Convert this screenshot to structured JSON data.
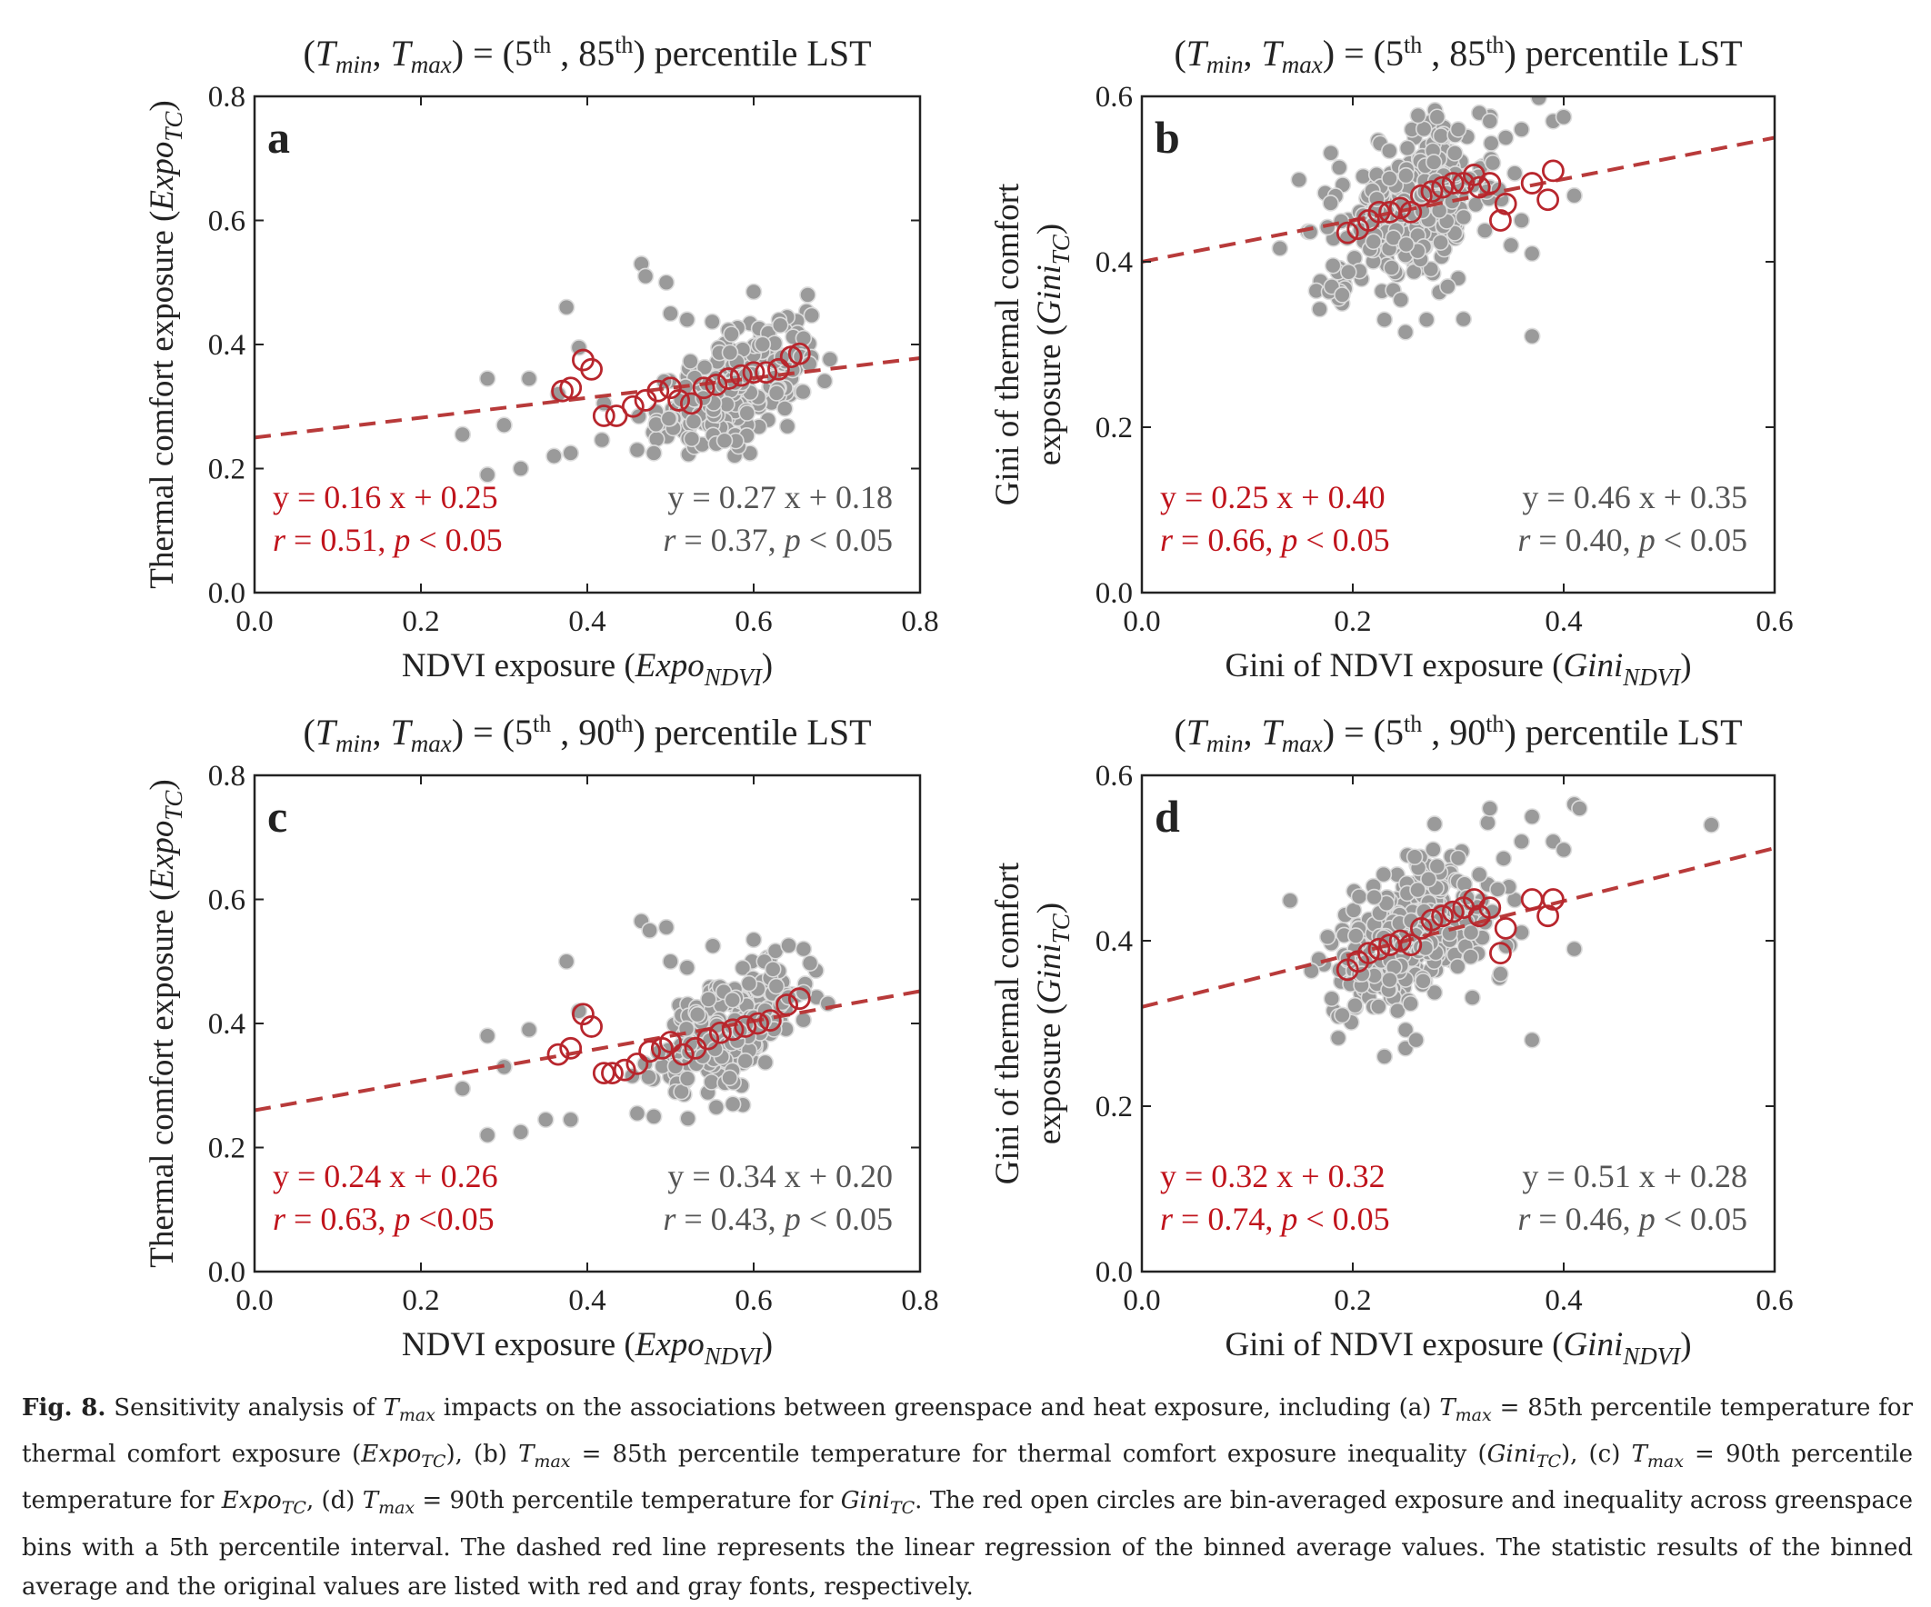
{
  "colors": {
    "axis": "#222222",
    "scatter_fill": "#9a9a9a",
    "scatter_edge": "#dcdcdc",
    "binned": "#b8262d",
    "fit_line": "#b83a3a",
    "binned_text": "#c0141c",
    "original_text": "#555555",
    "caption_text": "#222222"
  },
  "chart_data": [
    {
      "panel_label": "a",
      "type": "scatter",
      "title_parts": {
        "open": "(",
        "v1": "T",
        "s1": "min",
        "comma": ", ",
        "v2": "T",
        "s2": "max",
        "mid": ") = (5",
        "p1": "th",
        "sep": " , 85",
        "p2": "th",
        "tail": ") percentile LST"
      },
      "xlabel": {
        "main": "NDVI exposure (",
        "italic": "Expo",
        "sub": "NDVI",
        "close": ")"
      },
      "ylabel": {
        "main": "Thermal comfort exposure (",
        "italic": "Expo",
        "sub": "TC",
        "close": ")"
      },
      "xlim": [
        0,
        0.8
      ],
      "ylim": [
        0,
        0.8
      ],
      "xticks": [
        "0.0",
        "0.2",
        "0.4",
        "0.6",
        "0.8"
      ],
      "yticks": [
        "0.0",
        "0.2",
        "0.4",
        "0.6",
        "0.8"
      ],
      "fit_binned": {
        "slope": 0.16,
        "intercept": 0.25
      },
      "stats_binned": {
        "eq": "y = 0.16 x + 0.25",
        "r_label": "r",
        "r_val": " = 0.51, ",
        "p_label": "p",
        "p_val": " < 0.05"
      },
      "stats_original": {
        "eq": "y = 0.27 x + 0.18",
        "r_label": "r",
        "r_val": " = 0.37, ",
        "p_label": "p",
        "p_val": " < 0.05"
      },
      "binned_points": [
        [
          0.37,
          0.325
        ],
        [
          0.38,
          0.33
        ],
        [
          0.395,
          0.375
        ],
        [
          0.405,
          0.36
        ],
        [
          0.42,
          0.285
        ],
        [
          0.435,
          0.285
        ],
        [
          0.455,
          0.3
        ],
        [
          0.47,
          0.31
        ],
        [
          0.485,
          0.325
        ],
        [
          0.5,
          0.33
        ],
        [
          0.51,
          0.31
        ],
        [
          0.525,
          0.305
        ],
        [
          0.54,
          0.33
        ],
        [
          0.555,
          0.335
        ],
        [
          0.57,
          0.345
        ],
        [
          0.585,
          0.35
        ],
        [
          0.6,
          0.355
        ],
        [
          0.615,
          0.355
        ],
        [
          0.63,
          0.36
        ],
        [
          0.645,
          0.38
        ],
        [
          0.655,
          0.385
        ]
      ],
      "scatter_outliers": [
        [
          0.25,
          0.255
        ],
        [
          0.28,
          0.345
        ],
        [
          0.28,
          0.19
        ],
        [
          0.3,
          0.27
        ],
        [
          0.32,
          0.2
        ],
        [
          0.33,
          0.345
        ],
        [
          0.36,
          0.22
        ],
        [
          0.365,
          0.32
        ],
        [
          0.375,
          0.46
        ],
        [
          0.38,
          0.225
        ],
        [
          0.39,
          0.395
        ],
        [
          0.42,
          0.305
        ],
        [
          0.46,
          0.23
        ],
        [
          0.48,
          0.225
        ],
        [
          0.465,
          0.53
        ],
        [
          0.47,
          0.51
        ],
        [
          0.495,
          0.5
        ],
        [
          0.5,
          0.45
        ],
        [
          0.52,
          0.44
        ],
        [
          0.555,
          0.24
        ],
        [
          0.565,
          0.245
        ],
        [
          0.6,
          0.485
        ],
        [
          0.665,
          0.48
        ],
        [
          0.66,
          0.41
        ]
      ],
      "scatter_cloud": {
        "x_mean": 0.575,
        "x_sd": 0.045,
        "y_base": -0.04,
        "y_slope": 0.65,
        "y_sd": 0.04,
        "count": 250
      }
    },
    {
      "panel_label": "b",
      "type": "scatter",
      "title_parts": {
        "open": "(",
        "v1": "T",
        "s1": "min",
        "comma": ", ",
        "v2": "T",
        "s2": "max",
        "mid": ") = (5",
        "p1": "th",
        "sep": " , 85",
        "p2": "th",
        "tail": ") percentile LST"
      },
      "xlabel": {
        "main": "Gini of NDVI exposure (",
        "italic": "Gini",
        "sub": "NDVI",
        "close": ")"
      },
      "ylabel_line1": "Gini of thermal comfort",
      "ylabel": {
        "main": "exposure (",
        "italic": "Gini",
        "sub": "TC",
        "close": ")"
      },
      "xlim": [
        0,
        0.6
      ],
      "ylim": [
        0,
        0.6
      ],
      "xticks": [
        "0.0",
        "0.2",
        "0.4",
        "0.6"
      ],
      "yticks": [
        "0.0",
        "0.2",
        "0.4",
        "0.6"
      ],
      "fit_binned": {
        "slope": 0.25,
        "intercept": 0.4
      },
      "stats_binned": {
        "eq": "y = 0.25 x + 0.40",
        "r_label": "r",
        "r_val": " = 0.66, ",
        "p_label": "p",
        "p_val": " < 0.05"
      },
      "stats_original": {
        "eq": "y = 0.46 x + 0.35",
        "r_label": "r",
        "r_val": " = 0.40, ",
        "p_label": "p",
        "p_val": " < 0.05"
      },
      "binned_points": [
        [
          0.195,
          0.435
        ],
        [
          0.205,
          0.44
        ],
        [
          0.215,
          0.45
        ],
        [
          0.225,
          0.46
        ],
        [
          0.235,
          0.46
        ],
        [
          0.245,
          0.465
        ],
        [
          0.255,
          0.46
        ],
        [
          0.265,
          0.48
        ],
        [
          0.275,
          0.485
        ],
        [
          0.285,
          0.49
        ],
        [
          0.295,
          0.495
        ],
        [
          0.305,
          0.495
        ],
        [
          0.315,
          0.505
        ],
        [
          0.32,
          0.49
        ],
        [
          0.33,
          0.495
        ],
        [
          0.34,
          0.45
        ],
        [
          0.345,
          0.47
        ],
        [
          0.37,
          0.495
        ],
        [
          0.385,
          0.475
        ],
        [
          0.39,
          0.51
        ]
      ],
      "scatter_outliers": [
        [
          0.18,
          0.37
        ],
        [
          0.19,
          0.36
        ],
        [
          0.23,
          0.33
        ],
        [
          0.25,
          0.315
        ],
        [
          0.27,
          0.33
        ],
        [
          0.28,
          0.575
        ],
        [
          0.3,
          0.56
        ],
        [
          0.32,
          0.58
        ],
        [
          0.33,
          0.57
        ],
        [
          0.345,
          0.55
        ],
        [
          0.36,
          0.56
        ],
        [
          0.37,
          0.31
        ],
        [
          0.37,
          0.41
        ],
        [
          0.39,
          0.57
        ],
        [
          0.4,
          0.575
        ],
        [
          0.41,
          0.48
        ],
        [
          0.36,
          0.45
        ],
        [
          0.35,
          0.42
        ],
        [
          0.3,
          0.38
        ],
        [
          0.29,
          0.37
        ]
      ],
      "scatter_cloud": {
        "x_mean": 0.255,
        "x_sd": 0.04,
        "y_base": 0.35,
        "y_slope": 0.46,
        "y_sd": 0.045,
        "count": 300
      }
    },
    {
      "panel_label": "c",
      "type": "scatter",
      "title_parts": {
        "open": "(",
        "v1": "T",
        "s1": "min",
        "comma": ", ",
        "v2": "T",
        "s2": "max",
        "mid": ") = (5",
        "p1": "th",
        "sep": " , 90",
        "p2": "th",
        "tail": ") percentile LST"
      },
      "xlabel": {
        "main": "NDVI exposure (",
        "italic": "Expo",
        "sub": "NDVI",
        "close": ")"
      },
      "ylabel": {
        "main": "Thermal comfort exposure (",
        "italic": "Expo",
        "sub": "TC",
        "close": ")"
      },
      "xlim": [
        0,
        0.8
      ],
      "ylim": [
        0,
        0.8
      ],
      "xticks": [
        "0.0",
        "0.2",
        "0.4",
        "0.6",
        "0.8"
      ],
      "yticks": [
        "0.0",
        "0.2",
        "0.4",
        "0.6",
        "0.8"
      ],
      "fit_binned": {
        "slope": 0.24,
        "intercept": 0.26
      },
      "stats_binned": {
        "eq": "y = 0.24 x + 0.26",
        "r_label": "r",
        "r_val": " = 0.63, ",
        "p_label": "p",
        "p_val": " <0.05"
      },
      "stats_original": {
        "eq": "y = 0.34 x + 0.20",
        "r_label": "r",
        "r_val": " = 0.43, ",
        "p_label": "p",
        "p_val": " < 0.05"
      },
      "binned_points": [
        [
          0.365,
          0.35
        ],
        [
          0.38,
          0.36
        ],
        [
          0.395,
          0.415
        ],
        [
          0.405,
          0.395
        ],
        [
          0.42,
          0.32
        ],
        [
          0.43,
          0.32
        ],
        [
          0.445,
          0.325
        ],
        [
          0.46,
          0.335
        ],
        [
          0.475,
          0.355
        ],
        [
          0.49,
          0.36
        ],
        [
          0.5,
          0.37
        ],
        [
          0.515,
          0.35
        ],
        [
          0.53,
          0.36
        ],
        [
          0.545,
          0.375
        ],
        [
          0.56,
          0.385
        ],
        [
          0.575,
          0.39
        ],
        [
          0.59,
          0.395
        ],
        [
          0.605,
          0.4
        ],
        [
          0.62,
          0.405
        ],
        [
          0.64,
          0.43
        ],
        [
          0.655,
          0.44
        ]
      ],
      "scatter_outliers": [
        [
          0.25,
          0.295
        ],
        [
          0.28,
          0.38
        ],
        [
          0.28,
          0.22
        ],
        [
          0.3,
          0.33
        ],
        [
          0.32,
          0.225
        ],
        [
          0.33,
          0.39
        ],
        [
          0.35,
          0.245
        ],
        [
          0.375,
          0.5
        ],
        [
          0.38,
          0.245
        ],
        [
          0.39,
          0.42
        ],
        [
          0.46,
          0.255
        ],
        [
          0.48,
          0.25
        ],
        [
          0.465,
          0.565
        ],
        [
          0.475,
          0.55
        ],
        [
          0.495,
          0.555
        ],
        [
          0.5,
          0.5
        ],
        [
          0.52,
          0.49
        ],
        [
          0.555,
          0.265
        ],
        [
          0.575,
          0.27
        ],
        [
          0.6,
          0.535
        ],
        [
          0.66,
          0.52
        ],
        [
          0.66,
          0.45
        ]
      ],
      "scatter_cloud": {
        "x_mean": 0.575,
        "x_sd": 0.045,
        "y_base": 0.005,
        "y_slope": 0.68,
        "y_sd": 0.042,
        "count": 250
      }
    },
    {
      "panel_label": "d",
      "type": "scatter",
      "title_parts": {
        "open": "(",
        "v1": "T",
        "s1": "min",
        "comma": ", ",
        "v2": "T",
        "s2": "max",
        "mid": ") = (5",
        "p1": "th",
        "sep": " , 90",
        "p2": "th",
        "tail": ") percentile LST"
      },
      "xlabel": {
        "main": "Gini of NDVI exposure (",
        "italic": "Gini",
        "sub": "NDVI",
        "close": ")"
      },
      "ylabel_line1": "Gini of thermal comfort",
      "ylabel": {
        "main": "exposure (",
        "italic": "Gini",
        "sub": "TC",
        "close": ")"
      },
      "xlim": [
        0,
        0.6
      ],
      "ylim": [
        0,
        0.6
      ],
      "xticks": [
        "0.0",
        "0.2",
        "0.4",
        "0.6"
      ],
      "yticks": [
        "0.0",
        "0.2",
        "0.4",
        "0.6"
      ],
      "fit_binned": {
        "slope": 0.32,
        "intercept": 0.32
      },
      "stats_binned": {
        "eq": "y = 0.32 x + 0.32",
        "r_label": "r",
        "r_val": " = 0.74, ",
        "p_label": "p",
        "p_val": " < 0.05"
      },
      "stats_original": {
        "eq": "y = 0.51 x + 0.28",
        "r_label": "r",
        "r_val": " = 0.46, ",
        "p_label": "p",
        "p_val": " < 0.05"
      },
      "binned_points": [
        [
          0.195,
          0.365
        ],
        [
          0.205,
          0.375
        ],
        [
          0.215,
          0.385
        ],
        [
          0.225,
          0.39
        ],
        [
          0.235,
          0.395
        ],
        [
          0.245,
          0.4
        ],
        [
          0.255,
          0.395
        ],
        [
          0.265,
          0.415
        ],
        [
          0.275,
          0.425
        ],
        [
          0.285,
          0.43
        ],
        [
          0.295,
          0.435
        ],
        [
          0.305,
          0.44
        ],
        [
          0.315,
          0.45
        ],
        [
          0.32,
          0.43
        ],
        [
          0.33,
          0.44
        ],
        [
          0.34,
          0.385
        ],
        [
          0.345,
          0.415
        ],
        [
          0.37,
          0.45
        ],
        [
          0.385,
          0.43
        ],
        [
          0.39,
          0.45
        ]
      ],
      "scatter_outliers": [
        [
          0.18,
          0.33
        ],
        [
          0.19,
          0.31
        ],
        [
          0.23,
          0.26
        ],
        [
          0.25,
          0.27
        ],
        [
          0.26,
          0.28
        ],
        [
          0.28,
          0.49
        ],
        [
          0.3,
          0.5
        ],
        [
          0.32,
          0.48
        ],
        [
          0.33,
          0.56
        ],
        [
          0.36,
          0.52
        ],
        [
          0.37,
          0.28
        ],
        [
          0.37,
          0.55
        ],
        [
          0.39,
          0.52
        ],
        [
          0.4,
          0.51
        ],
        [
          0.41,
          0.565
        ],
        [
          0.415,
          0.56
        ],
        [
          0.41,
          0.39
        ],
        [
          0.54,
          0.54
        ],
        [
          0.36,
          0.41
        ],
        [
          0.34,
          0.36
        ]
      ],
      "scatter_cloud": {
        "x_mean": 0.255,
        "x_sd": 0.04,
        "y_base": 0.28,
        "y_slope": 0.51,
        "y_sd": 0.045,
        "count": 300
      }
    }
  ],
  "caption": {
    "fig_label": "Fig. 8.",
    "lines": [
      " Sensitivity analysis of T",
      "max",
      " impacts on the associations between greenspace and heat exposure, including (a) T",
      "max",
      " = 85th percentile temperature for thermal comfort exposure (Expo",
      "TC",
      "), (b) T",
      "max",
      " = 85th percentile temperature for thermal comfort exposure inequality (Gini",
      "TC",
      "), (c) T",
      "max",
      " = 90th percentile temperature for Expo",
      "TC",
      ", (d) T",
      "max",
      " = 90th percentile temperature for Gini",
      "TC",
      ". The red open circles are bin-averaged exposure and inequality across greenspace bins with a 5th percentile interval. The dashed red line represents the linear regression of the binned average values. The statistic results of the binned average and the original values are listed with red and gray fonts, respectively."
    ]
  }
}
